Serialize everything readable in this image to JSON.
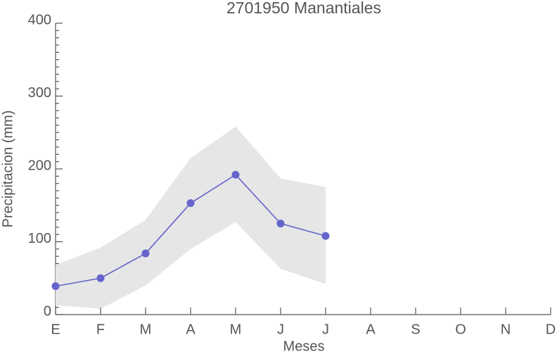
{
  "chart_data": {
    "type": "line",
    "title": "2701950 Manantiales",
    "x_label": "Meses",
    "y_label": "Precipitacion (mm)",
    "categories": [
      "E",
      "F",
      "M",
      "A",
      "M",
      "J",
      "J",
      "A",
      "S",
      "O",
      "N",
      "D"
    ],
    "values": [
      39,
      50,
      84,
      153,
      192,
      125,
      108,
      null,
      null,
      null,
      null,
      null
    ],
    "band_upper": [
      68,
      92,
      130,
      215,
      258,
      187,
      175,
      null,
      null,
      null,
      null,
      null
    ],
    "band_lower": [
      13,
      8,
      40,
      90,
      127,
      63,
      42,
      null,
      null,
      null,
      null,
      null
    ],
    "color": "#6464cc",
    "band_color": "#e6e6e6",
    "ylim": [
      0,
      400
    ],
    "yticks": [
      0,
      100,
      200,
      300,
      400
    ],
    "y_minor_ticks": true
  }
}
